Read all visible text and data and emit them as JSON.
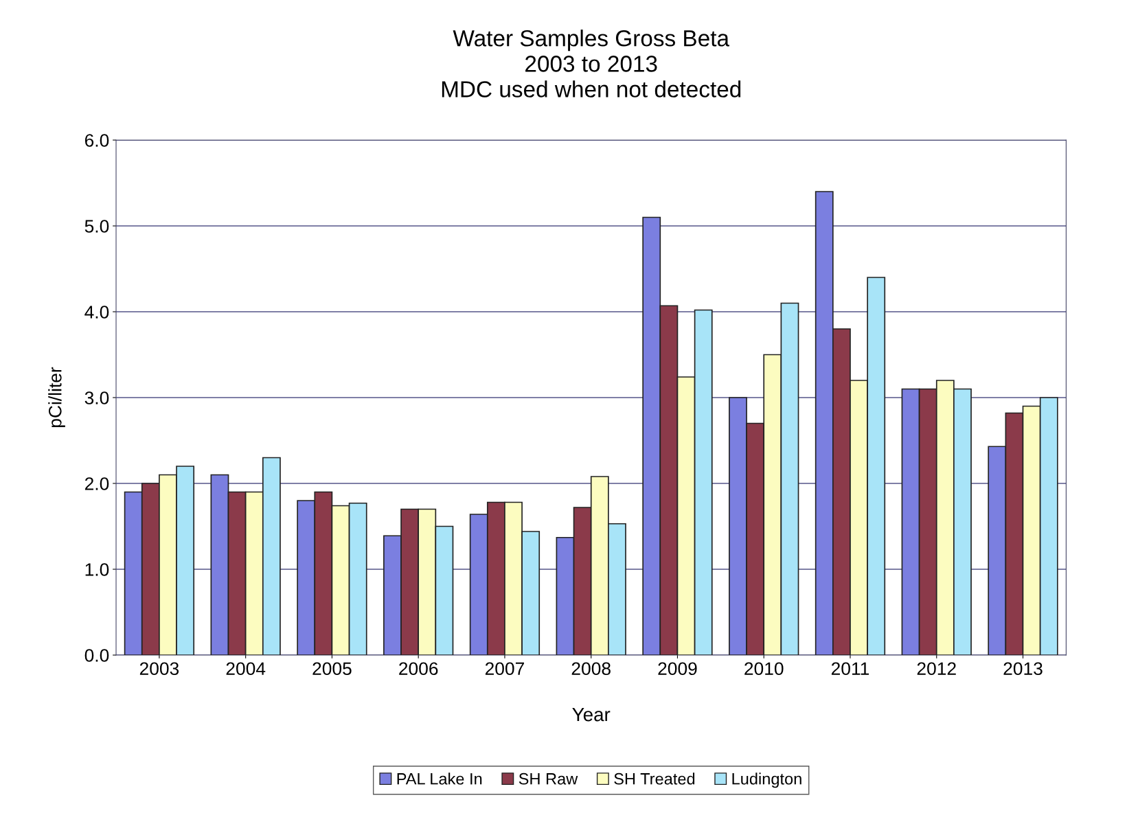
{
  "chart_data": {
    "type": "bar",
    "title": "Water Samples Gross Beta\n2003 to 2013\nMDC used when not detected",
    "xlabel": "Year",
    "ylabel": "pCi/liter",
    "categories": [
      "2003",
      "2004",
      "2005",
      "2006",
      "2007",
      "2008",
      "2009",
      "2010",
      "2011",
      "2012",
      "2013"
    ],
    "series": [
      {
        "name": "PAL Lake In",
        "color": "#7b7fe0",
        "values": [
          1.9,
          2.1,
          1.8,
          1.39,
          1.64,
          1.37,
          5.1,
          3.0,
          5.4,
          3.1,
          2.43
        ]
      },
      {
        "name": "SH Raw",
        "color": "#8b3a4a",
        "values": [
          2.0,
          1.9,
          1.9,
          1.7,
          1.78,
          1.72,
          4.07,
          2.7,
          3.8,
          3.1,
          2.82
        ]
      },
      {
        "name": "SH Treated",
        "color": "#fcfcc0",
        "values": [
          2.1,
          1.9,
          1.74,
          1.7,
          1.78,
          2.08,
          3.24,
          3.5,
          3.2,
          3.2,
          2.9
        ]
      },
      {
        "name": "Ludington",
        "color": "#a8e4f8",
        "values": [
          2.2,
          2.3,
          1.77,
          1.5,
          1.44,
          1.53,
          4.02,
          4.1,
          4.4,
          3.1,
          3.0
        ]
      }
    ],
    "ylim": [
      0,
      6
    ],
    "yticks": [
      {
        "value": 0,
        "label": "0.0"
      },
      {
        "value": 1,
        "label": "1.0"
      },
      {
        "value": 2,
        "label": "2.0"
      },
      {
        "value": 3,
        "label": "3.0"
      },
      {
        "value": 4,
        "label": "4.0"
      },
      {
        "value": 5,
        "label": "5.0"
      },
      {
        "value": 6,
        "label": "6.0"
      }
    ],
    "grid": "y",
    "legend": "bottom"
  }
}
